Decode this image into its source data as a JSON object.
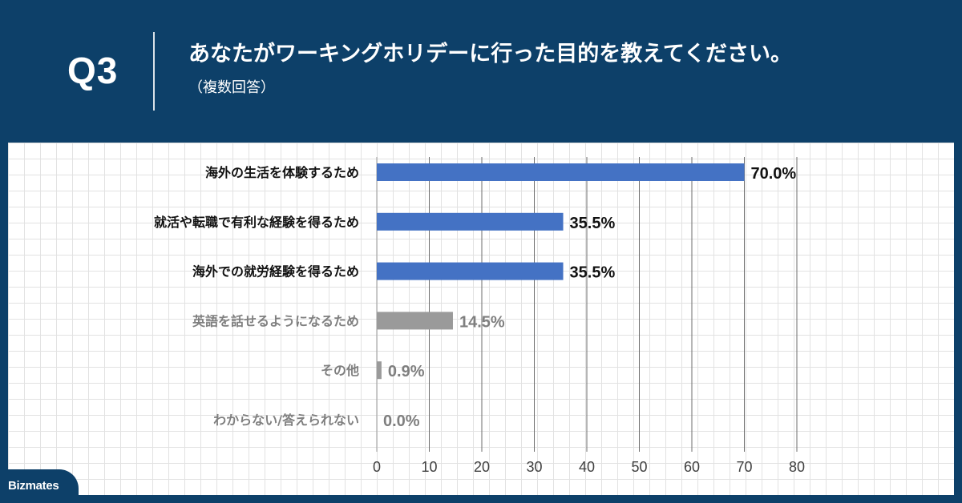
{
  "header": {
    "q_label": "Q3",
    "question": "あなたがワーキングホリデーに行った目的を教えてください。",
    "note": "（複数回答）"
  },
  "brand": {
    "name": "Bizmates"
  },
  "colors": {
    "header_bg": "#0d4069",
    "bar_primary": "#4472c4",
    "bar_secondary": "#9a9a9a",
    "text_primary": "#111111",
    "text_secondary": "#7f7f7f"
  },
  "chart_data": {
    "type": "bar",
    "orientation": "horizontal",
    "categories": [
      "海外の生活を体験するため",
      "就活や転職で有利な経験を得るため",
      "海外での就労経験を得るため",
      "英語を話せるようになるため",
      "その他",
      "わからない/答えられない"
    ],
    "values": [
      70.0,
      35.5,
      35.5,
      14.5,
      0.9,
      0.0
    ],
    "value_labels": [
      "70.0%",
      "35.5%",
      "35.5%",
      "14.5%",
      "0.9%",
      "0.0%"
    ],
    "highlight": [
      true,
      true,
      true,
      false,
      false,
      false
    ],
    "xlim": [
      0,
      80
    ],
    "xticks": [
      0,
      10,
      20,
      30,
      40,
      50,
      60,
      70,
      80
    ],
    "grid": true
  }
}
